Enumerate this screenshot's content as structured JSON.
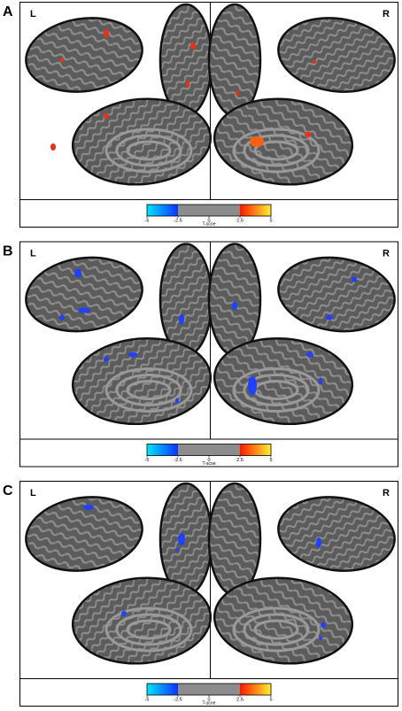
{
  "panels": [
    {
      "label": "A",
      "left": "L",
      "right": "R",
      "colorbar": {
        "ticks": [
          -5,
          -2.5,
          0,
          2.5,
          5
        ],
        "title": "T-scoe"
      }
    },
    {
      "label": "B",
      "left": "L",
      "right": "R",
      "colorbar": {
        "ticks": [
          -5,
          -2.5,
          0,
          2.5,
          5
        ],
        "title": "T-scoe"
      }
    },
    {
      "label": "C",
      "left": "L",
      "right": "R",
      "colorbar": {
        "ticks": [
          -5,
          -2.5,
          0,
          2.5,
          5
        ],
        "title": "T-scoe"
      }
    }
  ]
}
